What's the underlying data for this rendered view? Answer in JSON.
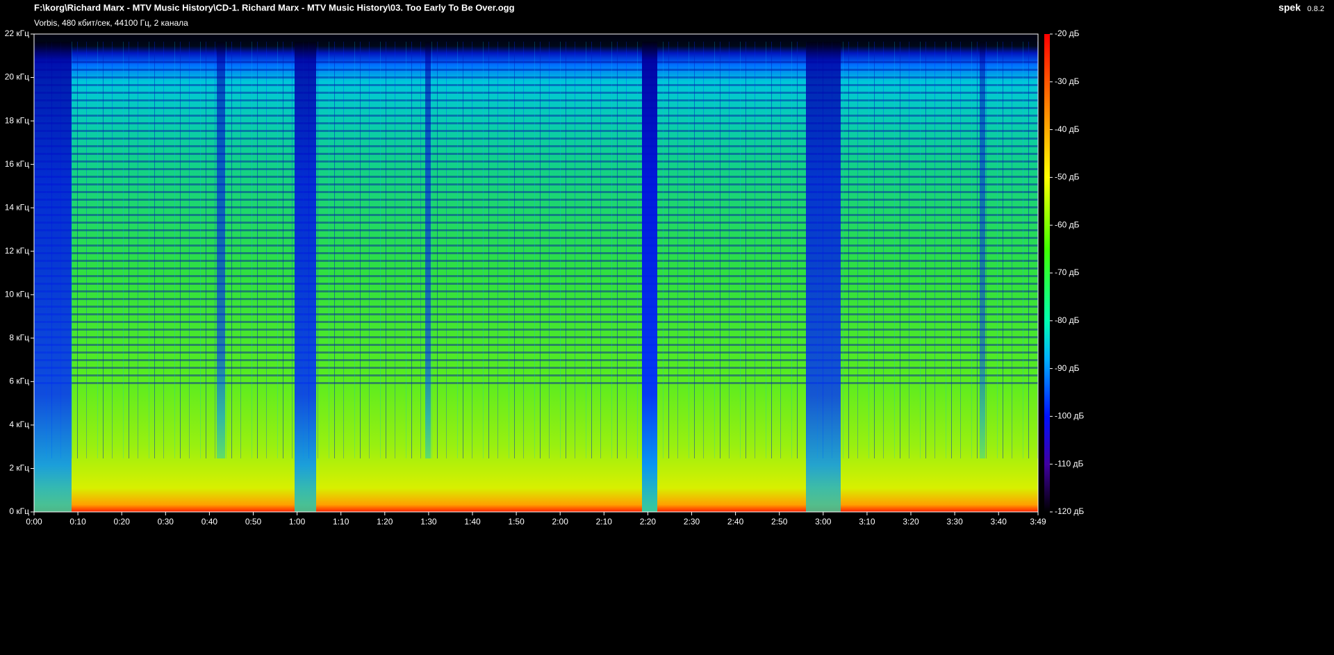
{
  "window": {
    "file_path": "F:\\korg\\Richard Marx - MTV Music History\\CD-1. Richard Marx - MTV Music History\\03. Too Early To Be Over.ogg",
    "info": "Vorbis, 480 кбит/сек, 44100 Гц, 2 канала",
    "app_name": "spek",
    "app_version": "0.8.2"
  },
  "frequency_axis": {
    "labels": [
      "0 кГц",
      "2 кГц",
      "4 кГц",
      "6 кГц",
      "8 кГц",
      "10 кГц",
      "12 кГц",
      "14 кГц",
      "16 кГц",
      "18 кГц",
      "20 кГц",
      "22 кГц"
    ]
  },
  "time_axis": {
    "labels": [
      "0:00",
      "0:10",
      "0:20",
      "0:30",
      "0:40",
      "0:50",
      "1:00",
      "1:10",
      "1:20",
      "1:30",
      "1:40",
      "1:50",
      "2:00",
      "2:10",
      "2:20",
      "2:30",
      "2:40",
      "2:50",
      "3:00",
      "3:10",
      "3:20",
      "3:30",
      "3:40",
      "3:49"
    ]
  },
  "level_scale": {
    "labels": [
      "-20 дБ",
      "-30 дБ",
      "-40 дБ",
      "-50 дБ",
      "-60 дБ",
      "-70 дБ",
      "-80 дБ",
      "-90 дБ",
      "-100 дБ",
      "-110 дБ",
      "-120 дБ"
    ]
  }
}
